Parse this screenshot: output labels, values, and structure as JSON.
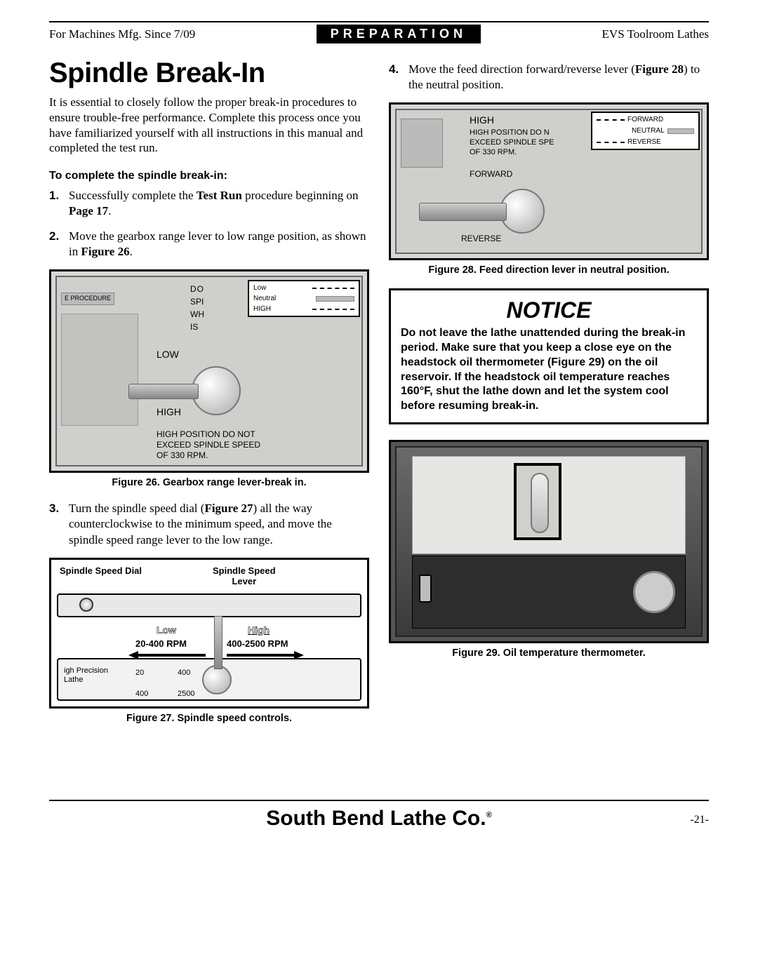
{
  "header": {
    "left": "For Machines Mfg. Since 7/09",
    "center": "PREPARATION",
    "right": "EVS Toolroom Lathes"
  },
  "title": "Spindle Break-In",
  "intro": "It is essential to closely follow the proper break-in procedures to ensure trouble-free performance. Complete this process once you have familiarized yourself with all instructions in this manual and completed the test run.",
  "procedure_heading": "To complete the spindle break-in:",
  "steps": {
    "s1": {
      "num": "1.",
      "html": "Successfully complete the <b>Test Run</b> procedure beginning on <b>Page 17</b>."
    },
    "s2": {
      "num": "2.",
      "html": "Move the gearbox range lever to low range position, as shown in <b>Figure 26</b>."
    },
    "s3": {
      "num": "3.",
      "html": "Turn the spindle speed dial (<b>Figure 27</b>) all the way counterclockwise to the minimum speed, and move the spindle speed range lever to the low range."
    },
    "s4": {
      "num": "4.",
      "html": "Move the feed direction forward/reverse lever (<b>Figure 28</b>) to the neutral position."
    }
  },
  "figures": {
    "f26": {
      "caption": "Figure 26. Gearbox range lever-break in.",
      "panel_badge": "E PROCEDURE",
      "labels": {
        "do": "DO",
        "spi": "SPI",
        "wh": "WH",
        "is": "IS",
        "low": "LOW",
        "high": "HIGH"
      },
      "inset": {
        "low": "Low",
        "neutral": "Neutral",
        "high": "HIGH"
      },
      "plate": "HIGH POSITION DO NOT\nEXCEED SPINDLE SPEED\nOF 330 RPM."
    },
    "f27": {
      "caption": "Figure 27. Spindle speed controls.",
      "dial_label": "Spindle Speed Dial",
      "lever_label": "Spindle Speed\nLever",
      "low": "Low",
      "high": "High",
      "low_rpm": "20-400 RPM",
      "high_rpm": "400-2500 RPM",
      "panel_left": "igh Precision\nLathe",
      "dial_nums": {
        "a": "20",
        "b": "400",
        "c": "400",
        "d": "2500"
      }
    },
    "f28": {
      "caption": "Figure 28. Feed direction lever in neutral position.",
      "high": "HIGH",
      "plate": "HIGH POSITION DO N\nEXCEED SPINDLE SPE\nOF 330 RPM.",
      "forward": "FORWARD",
      "reverse": "REVERSE",
      "inset": {
        "fwd": "FORWARD",
        "neu": "NEUTRAL",
        "rev": "REVERSE"
      }
    },
    "f29": {
      "caption": "Figure 29. Oil temperature thermometer."
    }
  },
  "notice": {
    "title": "NOTICE",
    "body": "Do not leave the lathe unattended during the break-in period. Make sure that you keep a close eye on the headstock oil thermometer (Figure 29) on the oil reservoir. If the headstock oil temperature reaches 160°F, shut the lathe down and let the system cool before resuming break-in."
  },
  "footer": {
    "company": "South Bend Lathe Co.",
    "page": "-21-"
  },
  "colors": {
    "figure_bg": "#d8d8d8",
    "metal": "#c8c6c2",
    "dark": "#3a3a3a"
  }
}
